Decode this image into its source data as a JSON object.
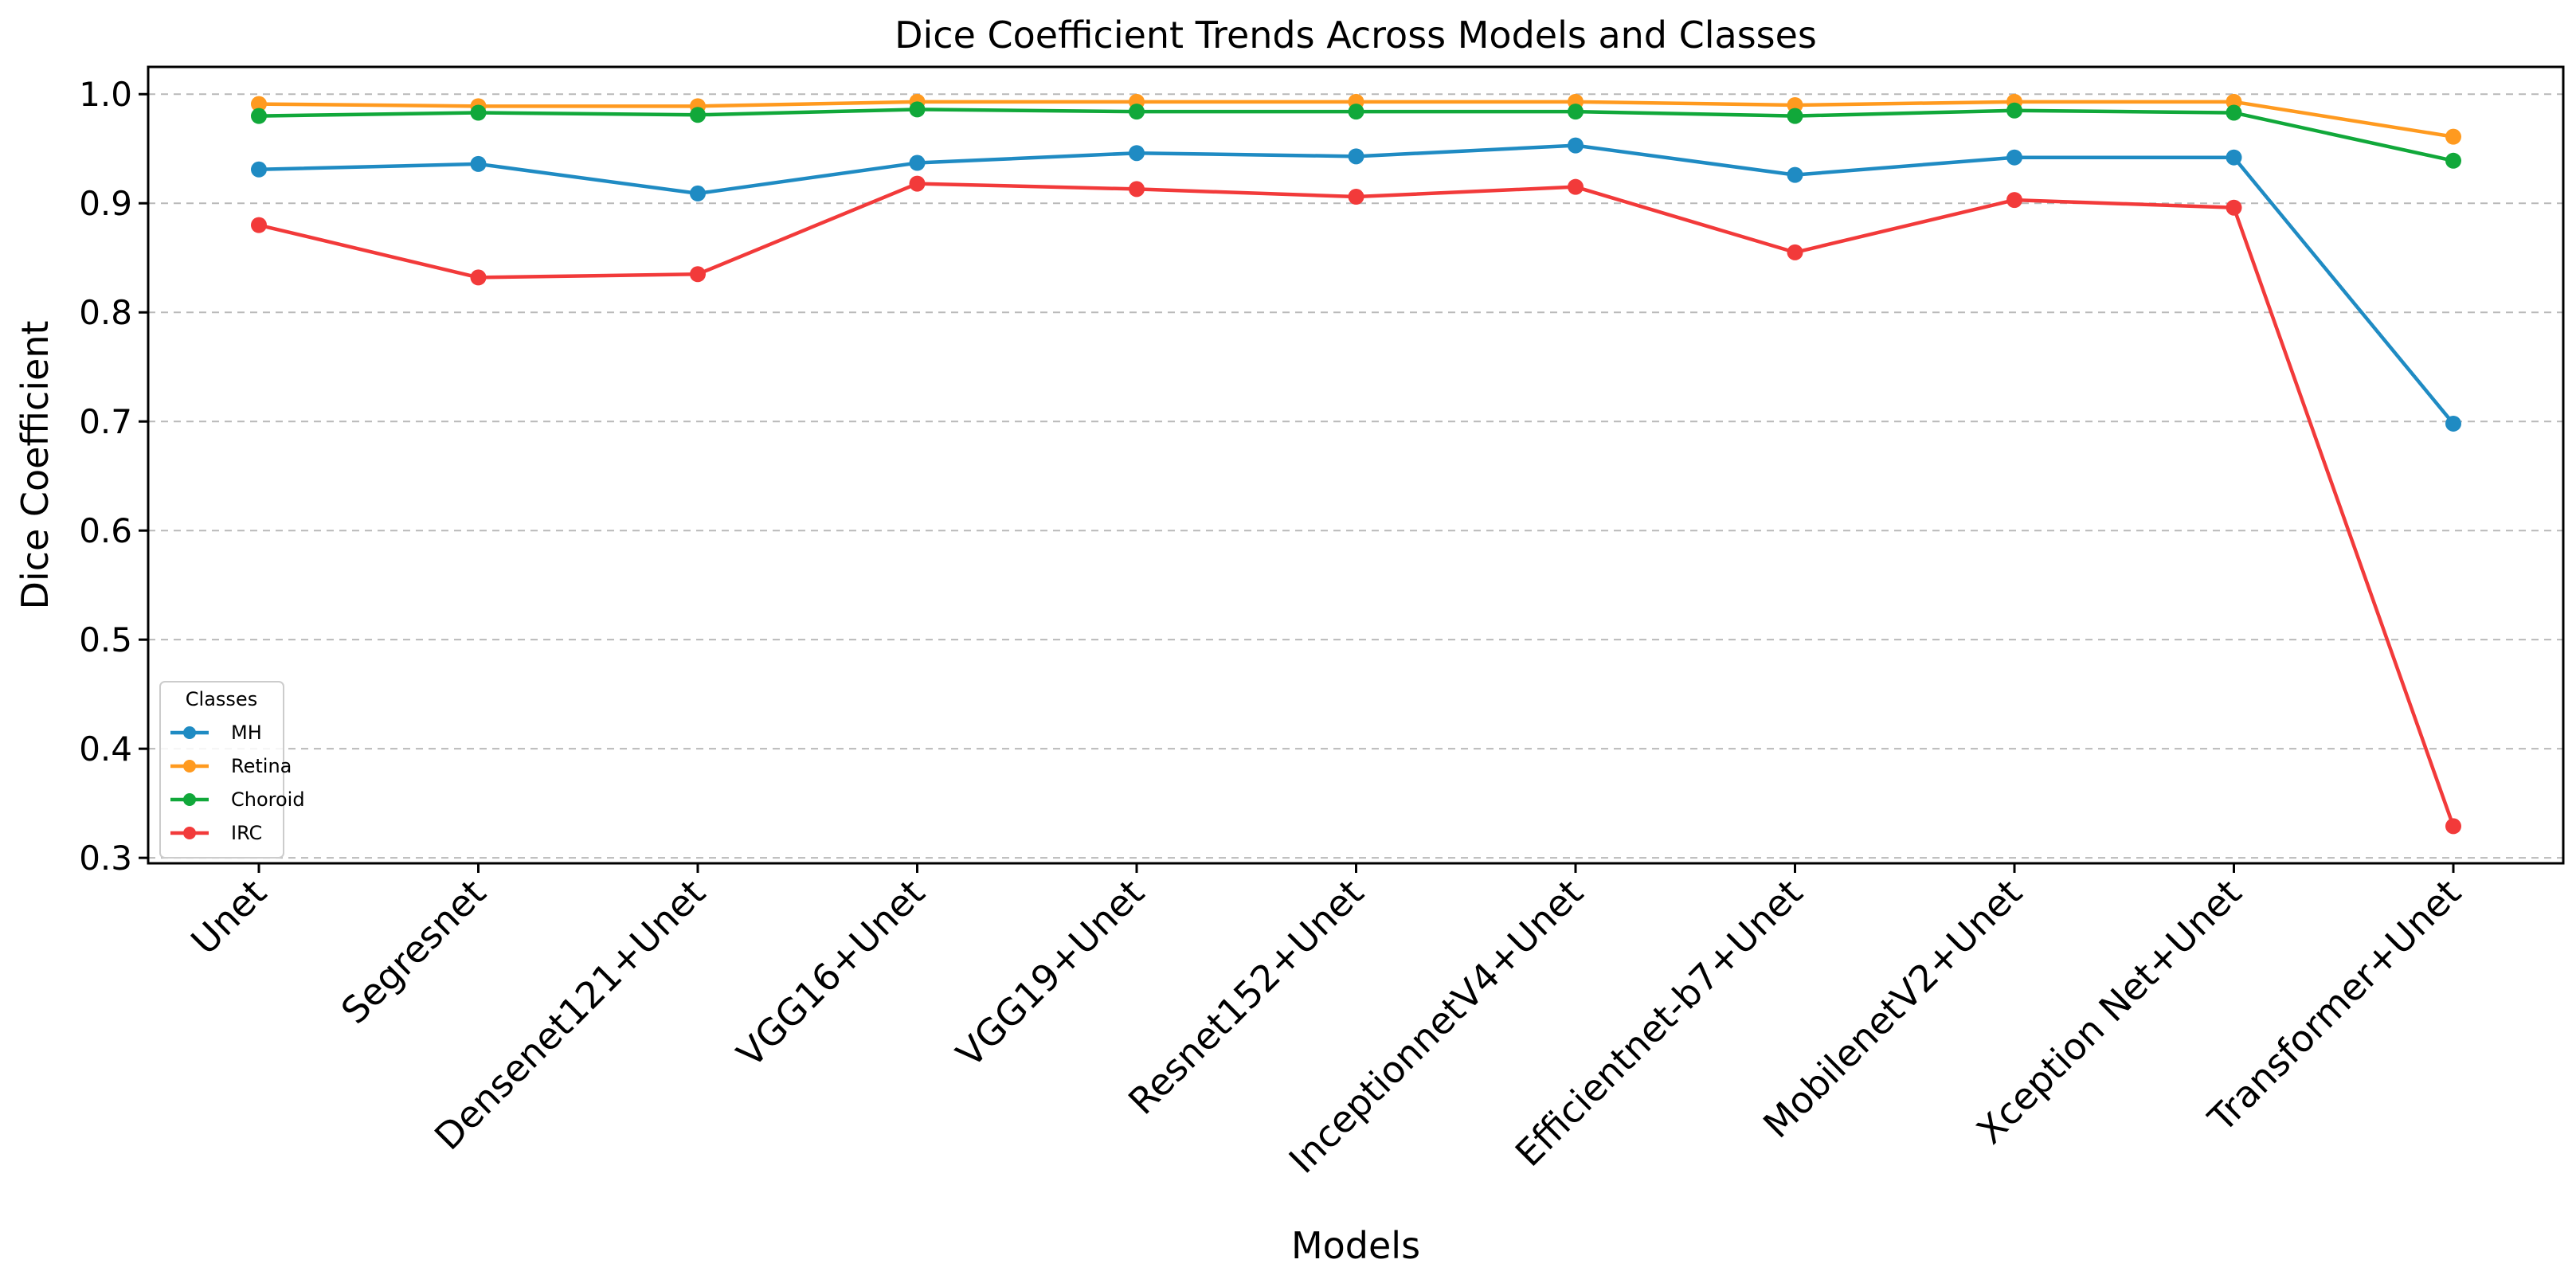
{
  "chart_data": {
    "type": "line",
    "title": "Dice Coefficient Trends Across Models and Classes",
    "xlabel": "Models",
    "ylabel": "Dice Coefficient",
    "ylim": [
      0.295,
      1.025
    ],
    "yticks": [
      0.3,
      0.4,
      0.5,
      0.6,
      0.7,
      0.8,
      0.9,
      1.0
    ],
    "ytick_labels": [
      "0.3",
      "0.4",
      "0.5",
      "0.6",
      "0.7",
      "0.8",
      "0.9",
      "1.0"
    ],
    "grid": "horizontal dashed",
    "legend_title": "Classes",
    "legend_location": "lower-left",
    "categories": [
      "Unet",
      "Segresnet",
      "Densenet121+Unet",
      "VGG16+Unet",
      "VGG19+Unet",
      "Resnet152+Unet",
      "InceptionnetV4+Unet",
      "Efficientnet-b7+Unet",
      "MobilenetV2+Unet",
      "Xception Net+Unet",
      "Transformer+Unet"
    ],
    "series": [
      {
        "name": "MH",
        "color": "#1f8bc3",
        "values": [
          0.931,
          0.936,
          0.909,
          0.937,
          0.946,
          0.943,
          0.953,
          0.926,
          0.942,
          0.942,
          0.698
        ]
      },
      {
        "name": "Retina",
        "color": "#ff9a1f",
        "values": [
          0.991,
          0.989,
          0.989,
          0.993,
          0.993,
          0.993,
          0.993,
          0.99,
          0.993,
          0.993,
          0.961
        ]
      },
      {
        "name": "Choroid",
        "color": "#11a83a",
        "values": [
          0.98,
          0.983,
          0.981,
          0.986,
          0.984,
          0.984,
          0.984,
          0.98,
          0.985,
          0.983,
          0.939
        ]
      },
      {
        "name": "IRC",
        "color": "#f23a3a",
        "values": [
          0.88,
          0.832,
          0.835,
          0.918,
          0.913,
          0.906,
          0.915,
          0.855,
          0.903,
          0.896,
          0.329
        ]
      }
    ]
  }
}
